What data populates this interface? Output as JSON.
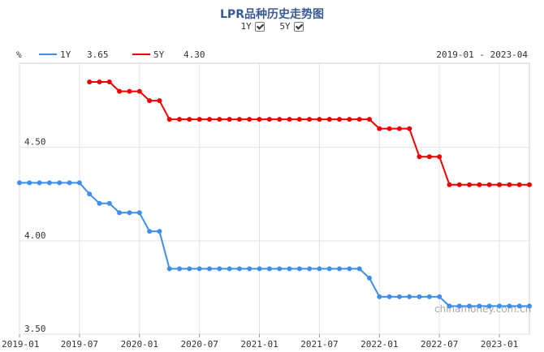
{
  "title": "LPR品种历史走势图",
  "toggles": [
    {
      "label": "1Y",
      "checked": true
    },
    {
      "label": "5Y",
      "checked": true
    }
  ],
  "unit": "%",
  "date_range": "2019-01 - 2023-04",
  "watermark": "chinamoney.com.cn",
  "colors": {
    "title": "#3a5a92",
    "series_1y": "#3f8ee8",
    "series_5y": "#ee0000",
    "grid": "#e2e2e2",
    "axis_text": "#333333"
  },
  "chart_data": {
    "type": "line",
    "title": "LPR品种历史走势图",
    "xlabel": "",
    "ylabel": "%",
    "ylim": [
      3.5,
      4.95
    ],
    "yticks": [
      "4.50",
      "4.00",
      "3.50"
    ],
    "xticks": [
      "2019-01",
      "2019-07",
      "2020-01",
      "2020-07",
      "2021-01",
      "2021-07",
      "2022-01",
      "2022-07",
      "2023-01"
    ],
    "legend_position": "top-left",
    "grid": true,
    "series": [
      {
        "name": "1Y",
        "latest": "3.65",
        "color": "#3f8ee8",
        "x": [
          "2019-01",
          "2019-02",
          "2019-03",
          "2019-04",
          "2019-05",
          "2019-06",
          "2019-07",
          "2019-08",
          "2019-09",
          "2019-10",
          "2019-11",
          "2019-12",
          "2020-01",
          "2020-02",
          "2020-03",
          "2020-04",
          "2020-05",
          "2020-06",
          "2020-07",
          "2020-08",
          "2020-09",
          "2020-10",
          "2020-11",
          "2020-12",
          "2021-01",
          "2021-02",
          "2021-03",
          "2021-04",
          "2021-05",
          "2021-06",
          "2021-07",
          "2021-08",
          "2021-09",
          "2021-10",
          "2021-11",
          "2021-12",
          "2022-01",
          "2022-02",
          "2022-03",
          "2022-04",
          "2022-05",
          "2022-06",
          "2022-07",
          "2022-08",
          "2022-09",
          "2022-10",
          "2022-11",
          "2022-12",
          "2023-01",
          "2023-02",
          "2023-03",
          "2023-04"
        ],
        "values": [
          4.31,
          4.31,
          4.31,
          4.31,
          4.31,
          4.31,
          4.31,
          4.25,
          4.2,
          4.2,
          4.15,
          4.15,
          4.15,
          4.05,
          4.05,
          3.85,
          3.85,
          3.85,
          3.85,
          3.85,
          3.85,
          3.85,
          3.85,
          3.85,
          3.85,
          3.85,
          3.85,
          3.85,
          3.85,
          3.85,
          3.85,
          3.85,
          3.85,
          3.85,
          3.85,
          3.8,
          3.7,
          3.7,
          3.7,
          3.7,
          3.7,
          3.7,
          3.7,
          3.65,
          3.65,
          3.65,
          3.65,
          3.65,
          3.65,
          3.65,
          3.65,
          3.65
        ]
      },
      {
        "name": "5Y",
        "latest": "4.30",
        "color": "#ee0000",
        "x": [
          "2019-08",
          "2019-09",
          "2019-10",
          "2019-11",
          "2019-12",
          "2020-01",
          "2020-02",
          "2020-03",
          "2020-04",
          "2020-05",
          "2020-06",
          "2020-07",
          "2020-08",
          "2020-09",
          "2020-10",
          "2020-11",
          "2020-12",
          "2021-01",
          "2021-02",
          "2021-03",
          "2021-04",
          "2021-05",
          "2021-06",
          "2021-07",
          "2021-08",
          "2021-09",
          "2021-10",
          "2021-11",
          "2021-12",
          "2022-01",
          "2022-02",
          "2022-03",
          "2022-04",
          "2022-05",
          "2022-06",
          "2022-07",
          "2022-08",
          "2022-09",
          "2022-10",
          "2022-11",
          "2022-12",
          "2023-01",
          "2023-02",
          "2023-03",
          "2023-04"
        ],
        "values": [
          4.85,
          4.85,
          4.85,
          4.8,
          4.8,
          4.8,
          4.75,
          4.75,
          4.65,
          4.65,
          4.65,
          4.65,
          4.65,
          4.65,
          4.65,
          4.65,
          4.65,
          4.65,
          4.65,
          4.65,
          4.65,
          4.65,
          4.65,
          4.65,
          4.65,
          4.65,
          4.65,
          4.65,
          4.65,
          4.6,
          4.6,
          4.6,
          4.6,
          4.45,
          4.45,
          4.45,
          4.3,
          4.3,
          4.3,
          4.3,
          4.3,
          4.3,
          4.3,
          4.3,
          4.3
        ]
      }
    ]
  }
}
